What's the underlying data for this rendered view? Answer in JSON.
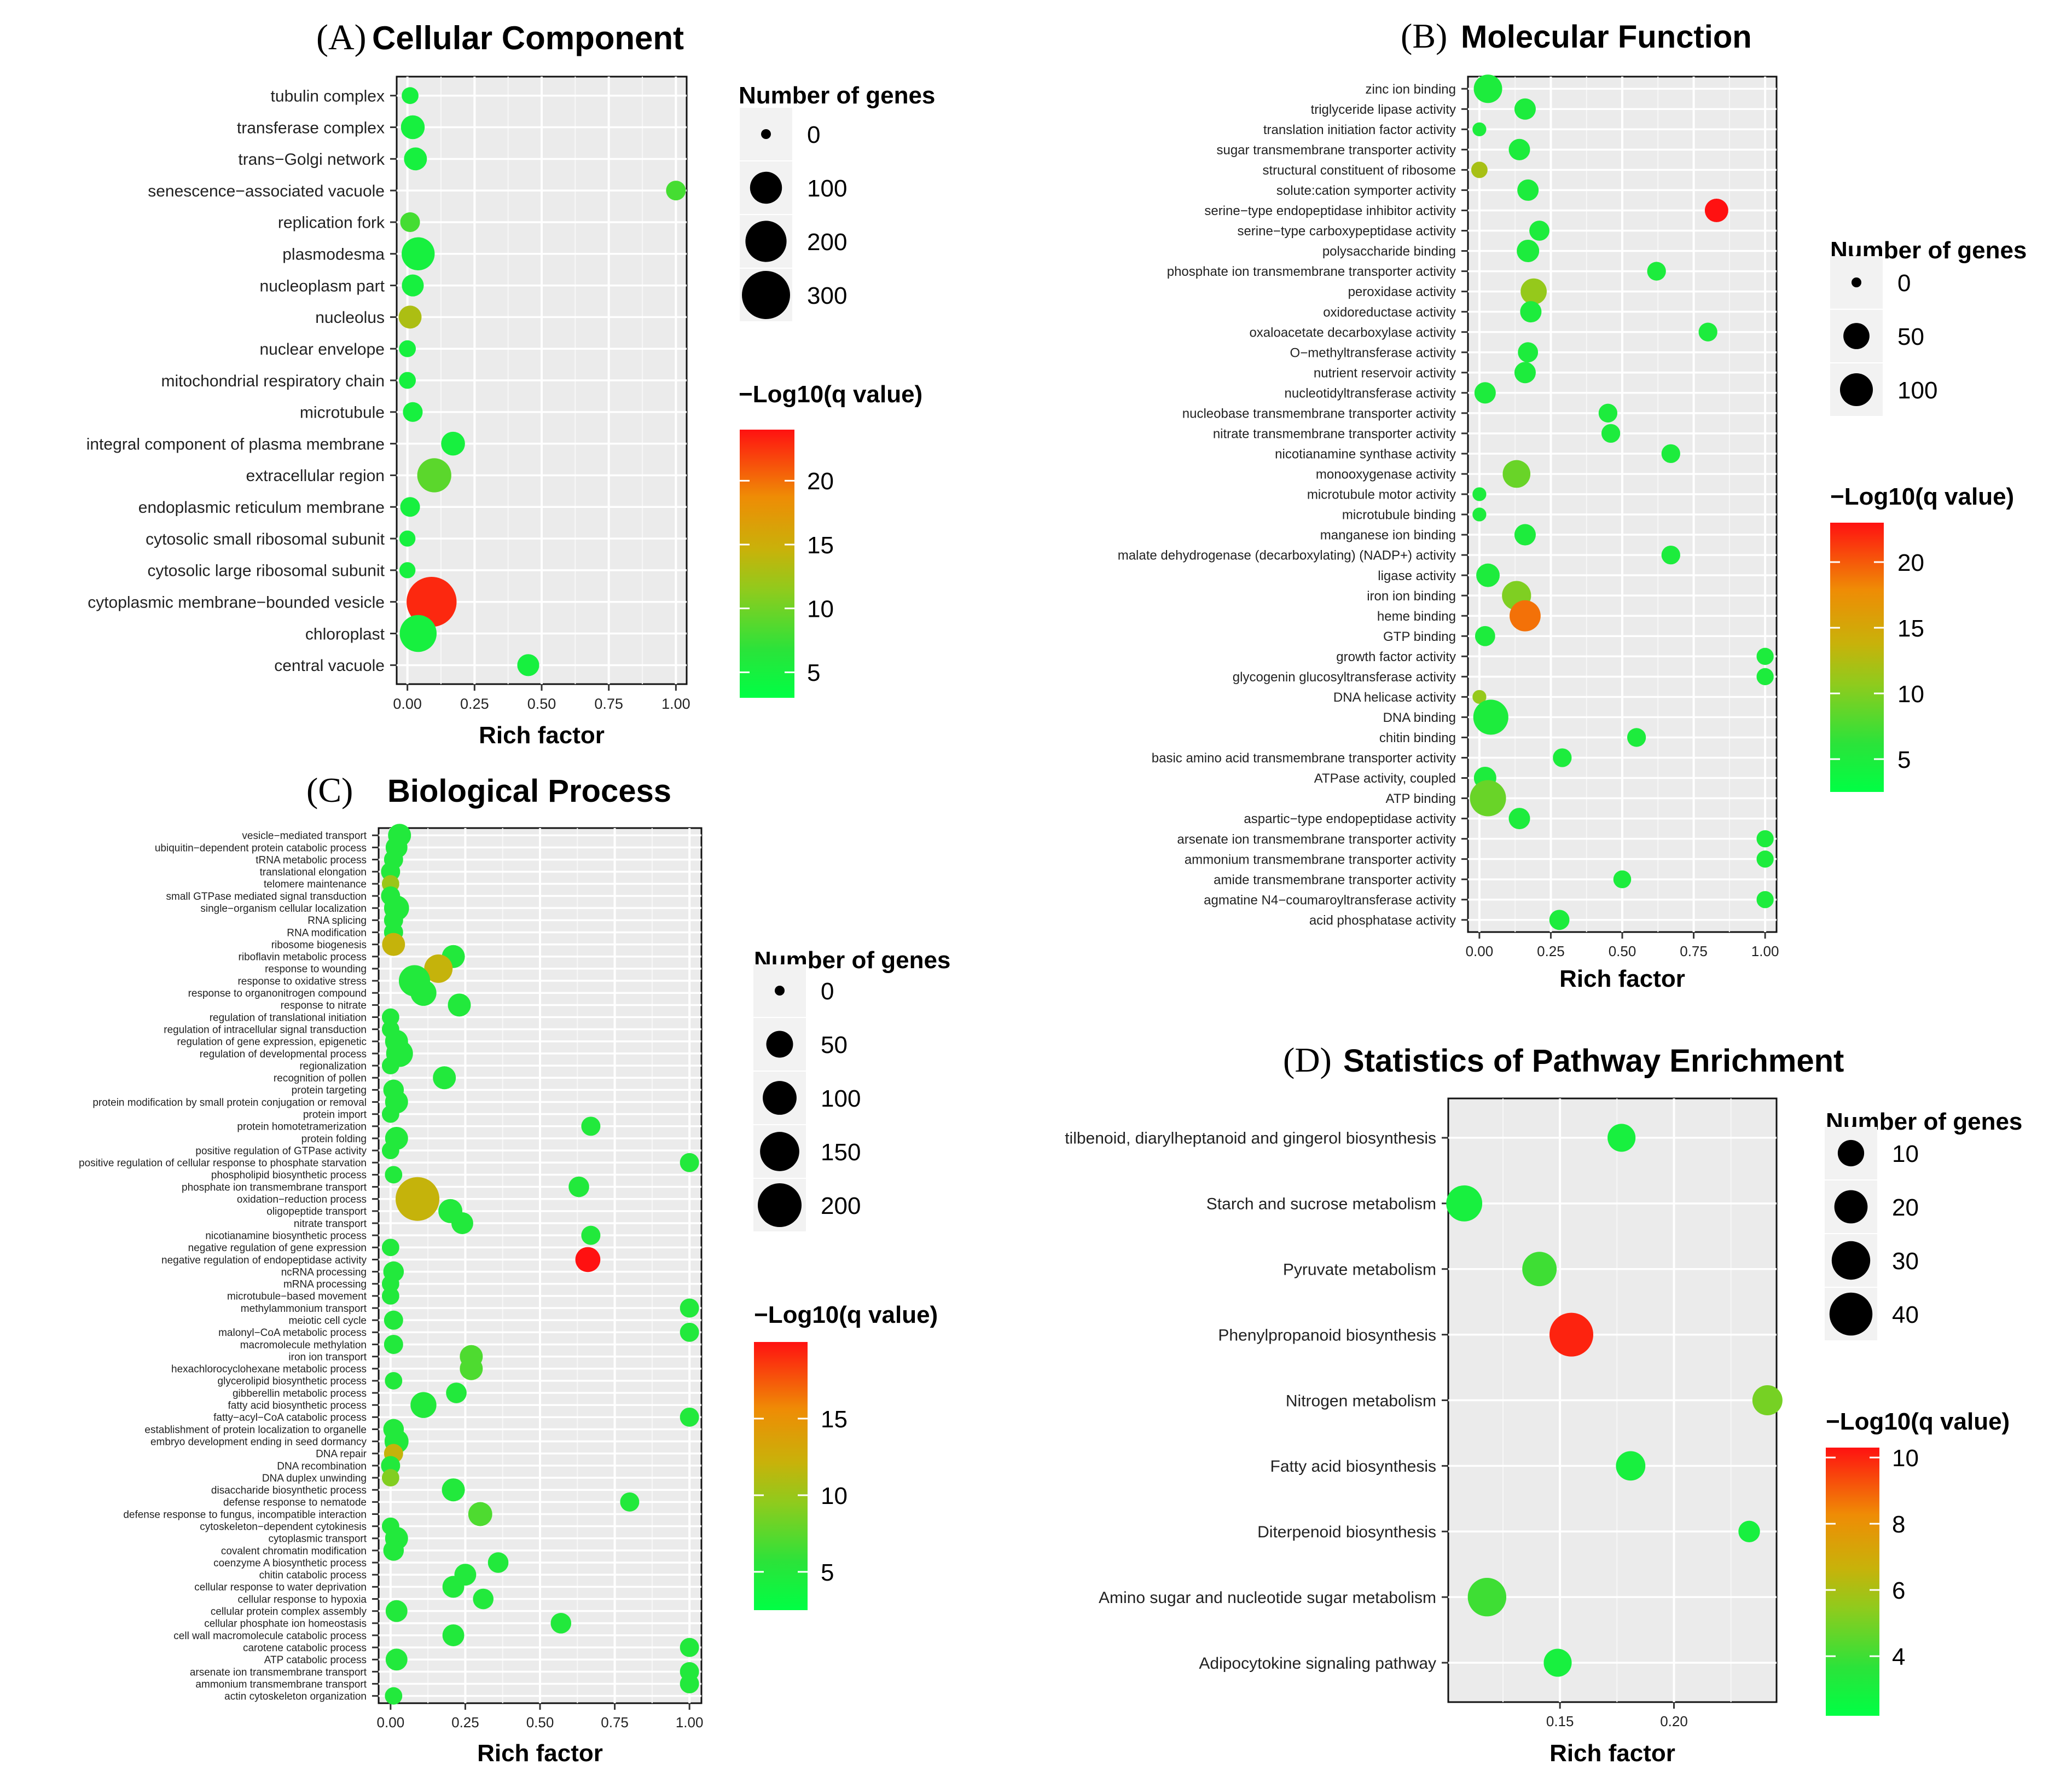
{
  "chart_data": [
    {
      "type": "scatter",
      "panel": "(A)",
      "title": "Cellular Component",
      "xlabel": "Rich factor",
      "xticks": [
        "0.00",
        "0.25",
        "0.50",
        "0.75",
        "1.00"
      ],
      "xlim": [
        -0.04,
        1.04
      ],
      "categories": [
        "tubulin complex",
        "transferase complex",
        "trans−Golgi network",
        "senescence−associated vacuole",
        "replication fork",
        "plasmodesma",
        "nucleoplasm part",
        "nucleolus",
        "nuclear envelope",
        "mitochondrial respiratory chain",
        "microtubule",
        "integral component of plasma membrane",
        "extracellular region",
        "endoplasmic reticulum membrane",
        "cytosolic small ribosomal subunit",
        "cytosolic large ribosomal subunit",
        "cytoplasmic membrane−bounded vesicle",
        "chloroplast",
        "central vacuole"
      ],
      "x": [
        0.01,
        0.02,
        0.03,
        1.0,
        0.01,
        0.04,
        0.02,
        0.01,
        0.0,
        0.0,
        0.02,
        0.17,
        0.1,
        0.01,
        0.0,
        0.0,
        0.09,
        0.04,
        0.45
      ],
      "genes": [
        10,
        40,
        35,
        20,
        20,
        110,
        30,
        35,
        10,
        10,
        20,
        40,
        120,
        20,
        8,
        8,
        330,
        150,
        30
      ],
      "q": [
        5,
        5,
        5,
        8,
        8,
        5,
        5,
        13,
        5,
        5,
        5,
        5,
        9,
        5,
        5,
        5,
        23,
        5,
        5
      ],
      "legend_size": {
        "title": "Number of genes",
        "values": [
          0,
          100,
          200,
          300
        ],
        "labels": [
          "0",
          "100",
          "200",
          "300"
        ]
      },
      "legend_color": {
        "title": "−Log10(q value)",
        "range": [
          3,
          24
        ],
        "labels": [
          "20",
          "15",
          "10",
          "5"
        ],
        "values": [
          20,
          15,
          10,
          5
        ]
      }
    },
    {
      "type": "scatter",
      "panel": "(B)",
      "title": "Molecular Function",
      "xlabel": "Rich factor",
      "xticks": [
        "0.00",
        "0.25",
        "0.50",
        "0.75",
        "1.00"
      ],
      "xlim": [
        -0.04,
        1.04
      ],
      "categories": [
        "zinc ion binding",
        "triglyceride lipase activity",
        "translation initiation factor activity",
        "sugar transmembrane transporter activity",
        "structural constituent of ribosome",
        "solute:cation symporter activity",
        "serine−type endopeptidase inhibitor activity",
        "serine−type carboxypeptidase activity",
        "polysaccharide binding",
        "phosphate ion transmembrane transporter activity",
        "peroxidase activity",
        "oxidoreductase activity",
        "oxaloacetate decarboxylase activity",
        "O−methyltransferase activity",
        "nutrient reservoir activity",
        "nucleotidyltransferase activity",
        "nucleobase transmembrane transporter activity",
        "nitrate transmembrane transporter activity",
        "nicotianamine synthase activity",
        "monooxygenase activity",
        "microtubule motor activity",
        "microtubule binding",
        "manganese ion binding",
        "malate dehydrogenase (decarboxylating) (NADP+) activity",
        "ligase activity",
        "iron ion binding",
        "heme binding",
        "GTP binding",
        "growth factor activity",
        "glycogenin glucosyltransferase activity",
        "DNA helicase activity",
        "DNA binding",
        "chitin binding",
        "basic amino acid transmembrane transporter activity",
        "ATPase activity, coupled",
        "ATP binding",
        "aspartic−type endopeptidase activity",
        "arsenate ion transmembrane transporter activity",
        "ammonium transmembrane transporter activity",
        "amide transmembrane transporter activity",
        "agmatine N4−coumaroyltransferase activity",
        "acid phosphatase activity"
      ],
      "x": [
        0.03,
        0.16,
        0.0,
        0.14,
        0.0,
        0.17,
        0.83,
        0.21,
        0.17,
        0.62,
        0.19,
        0.18,
        0.8,
        0.17,
        0.16,
        0.02,
        0.45,
        0.46,
        0.67,
        0.13,
        0.0,
        0.0,
        0.16,
        0.67,
        0.03,
        0.13,
        0.16,
        0.02,
        1.0,
        1.0,
        0.0,
        0.04,
        0.55,
        0.29,
        0.02,
        0.03,
        0.14,
        1.0,
        1.0,
        0.5,
        1.0,
        0.28
      ],
      "genes": [
        65,
        25,
        3,
        25,
        8,
        25,
        35,
        20,
        30,
        15,
        50,
        25,
        15,
        20,
        25,
        25,
        15,
        15,
        15,
        60,
        3,
        3,
        25,
        15,
        35,
        70,
        85,
        20,
        10,
        10,
        3,
        120,
        15,
        15,
        30,
        130,
        25,
        10,
        10,
        12,
        10,
        20
      ],
      "q": [
        5,
        5,
        5,
        5,
        12,
        5,
        23,
        5,
        5,
        5,
        11,
        5,
        5,
        5,
        5,
        5,
        5,
        5,
        5,
        9,
        5,
        5,
        5,
        5,
        5,
        10,
        19,
        5,
        5,
        5,
        11,
        5,
        5,
        5,
        5,
        9,
        5,
        5,
        5,
        5,
        5,
        5
      ],
      "legend_size": {
        "title": "Number of genes",
        "values": [
          0,
          50,
          100
        ],
        "labels": [
          "0",
          "50",
          "100"
        ]
      },
      "legend_color": {
        "title": "−Log10(q value)",
        "range": [
          2.5,
          23
        ],
        "labels": [
          "20",
          "15",
          "10",
          "5"
        ],
        "values": [
          20,
          15,
          10,
          5
        ]
      }
    },
    {
      "type": "scatter",
      "panel": "(C)",
      "title": "Biological Process",
      "xlabel": "Rich factor",
      "xticks": [
        "0.00",
        "0.25",
        "0.50",
        "0.75",
        "1.00"
      ],
      "xlim": [
        -0.04,
        1.04
      ],
      "categories": [
        "vesicle−mediated transport",
        "ubiquitin−dependent protein catabolic process",
        "tRNA metabolic process",
        "translational elongation",
        "telomere maintenance",
        "small GTPase mediated signal transduction",
        "single−organism cellular localization",
        "RNA splicing",
        "RNA modification",
        "ribosome biogenesis",
        "riboflavin metabolic process",
        "response to wounding",
        "response to oxidative stress",
        "response to organonitrogen compound",
        "response to nitrate",
        "regulation of translational initiation",
        "regulation of intracellular signal transduction",
        "regulation of gene expression, epigenetic",
        "regulation of developmental process",
        "regionalization",
        "recognition of pollen",
        "protein targeting",
        "protein modification by small protein conjugation or removal",
        "protein import",
        "protein homotetramerization",
        "protein folding",
        "positive regulation of GTPase activity",
        "positive regulation of cellular response to phosphate starvation",
        "phospholipid biosynthetic process",
        "phosphate ion transmembrane transport",
        "oxidation−reduction process",
        "oligopeptide transport",
        "nitrate transport",
        "nicotianamine biosynthetic process",
        "negative regulation of gene expression",
        "negative regulation of endopeptidase activity",
        "ncRNA processing",
        "mRNA processing",
        "microtubule−based movement",
        "methylammonium transport",
        "meiotic cell cycle",
        "malonyl−CoA metabolic process",
        "macromolecule methylation",
        "iron ion transport",
        "hexachlorocyclohexane metabolic process",
        "glycerolipid biosynthetic process",
        "gibberellin metabolic process",
        "fatty acid biosynthetic process",
        "fatty−acyl−CoA catabolic process",
        "establishment of protein localization to organelle",
        "embryo development ending in seed dormancy",
        "DNA repair",
        "DNA recombination",
        "DNA duplex unwinding",
        "disaccharide biosynthetic process",
        "defense response to nematode",
        "defense response to fungus, incompatible interaction",
        "cytoskeleton−dependent cytokinesis",
        "cytoplasmic transport",
        "covalent chromatin modification",
        "coenzyme A biosynthetic process",
        "chitin catabolic process",
        "cellular response to water deprivation",
        "cellular response to hypoxia",
        "cellular protein complex assembly",
        "cellular phosphate ion homeostasis",
        "cell wall macromolecule catabolic process",
        "carotene catabolic process",
        "ATP catabolic process",
        "arsenate ion transmembrane transport",
        "ammonium transmembrane transport",
        "actin cytoskeleton organization"
      ],
      "x": [
        0.03,
        0.02,
        0.01,
        0.0,
        0.0,
        0.0,
        0.02,
        0.01,
        0.01,
        0.01,
        0.21,
        0.16,
        0.08,
        0.11,
        0.23,
        0.0,
        0.0,
        0.02,
        0.03,
        0.0,
        0.18,
        0.01,
        0.02,
        0.0,
        0.67,
        0.02,
        0.0,
        1.0,
        0.01,
        0.63,
        0.09,
        0.2,
        0.24,
        0.67,
        0.0,
        0.66,
        0.01,
        0.0,
        0.0,
        1.0,
        0.01,
        1.0,
        0.01,
        0.27,
        0.27,
        0.01,
        0.22,
        0.11,
        1.0,
        0.01,
        0.02,
        0.01,
        0.0,
        0.0,
        0.21,
        0.8,
        0.3,
        0.0,
        0.02,
        0.01,
        0.36,
        0.25,
        0.21,
        0.31,
        0.02,
        0.57,
        0.21,
        1.0,
        0.02,
        1.0,
        1.0,
        0.01
      ],
      "genes": [
        30,
        25,
        15,
        15,
        10,
        15,
        40,
        15,
        15,
        30,
        30,
        60,
        80,
        45,
        30,
        10,
        10,
        30,
        50,
        10,
        30,
        20,
        30,
        10,
        15,
        30,
        10,
        15,
        10,
        20,
        200,
        35,
        25,
        15,
        10,
        40,
        20,
        10,
        10,
        15,
        15,
        15,
        15,
        30,
        30,
        10,
        20,
        45,
        15,
        20,
        35,
        15,
        15,
        10,
        30,
        15,
        35,
        10,
        30,
        20,
        20,
        25,
        25,
        20,
        25,
        20,
        25,
        15,
        25,
        15,
        15,
        10
      ],
      "q": [
        5,
        5,
        5,
        5,
        10,
        5,
        5,
        5,
        5,
        12,
        5,
        12,
        5,
        5,
        5,
        5,
        5,
        5,
        5,
        5,
        5,
        5,
        5,
        5,
        5,
        5,
        5,
        5,
        5,
        5,
        12,
        5,
        5,
        5,
        5,
        20,
        5,
        5,
        5,
        5,
        5,
        5,
        5,
        7,
        7,
        5,
        5,
        5,
        5,
        5,
        5,
        12,
        5,
        9,
        5,
        5,
        7,
        5,
        5,
        5,
        5,
        5,
        5,
        5,
        5,
        5,
        5,
        5,
        5,
        5,
        5,
        5
      ],
      "legend_size": {
        "title": "Number of genes",
        "values": [
          0,
          50,
          100,
          150,
          200
        ],
        "labels": [
          "0",
          "50",
          "100",
          "150",
          "200"
        ]
      },
      "legend_color": {
        "title": "−Log10(q value)",
        "range": [
          2.5,
          20
        ],
        "labels": [
          "15",
          "10",
          "5"
        ],
        "values": [
          15,
          10,
          5
        ]
      }
    },
    {
      "type": "scatter",
      "panel": "(D)",
      "title": "Statistics of Pathway Enrichment",
      "xlabel": "Rich factor",
      "xticks": [
        "0.15",
        "0.20"
      ],
      "xtick_values": [
        0.15,
        0.2
      ],
      "xlim": [
        0.101,
        0.245
      ],
      "categories": [
        "tilbenoid, diarylheptanoid and gingerol biosynthesis",
        "Starch and sucrose metabolism",
        "Pyruvate metabolism",
        "Phenylpropanoid biosynthesis",
        "Nitrogen metabolism",
        "Fatty acid biosynthesis",
        "Diterpenoid biosynthesis",
        "Amino sugar and nucleotide sugar metabolism",
        "Adipocytokine signaling pathway"
      ],
      "x": [
        0.177,
        0.108,
        0.141,
        0.155,
        0.241,
        0.181,
        0.233,
        0.118,
        0.149
      ],
      "genes": [
        12,
        25,
        22,
        42,
        15,
        14,
        5,
        30,
        12
      ],
      "q": [
        3,
        3,
        4,
        10,
        5,
        3,
        3,
        4,
        3
      ],
      "legend_size": {
        "title": "Number of genes",
        "values": [
          10,
          20,
          30,
          40
        ],
        "labels": [
          "10",
          "20",
          "30",
          "40"
        ]
      },
      "legend_color": {
        "title": "−Log10(q value)",
        "range": [
          2.2,
          10.3
        ],
        "labels": [
          "10",
          "8",
          "6",
          "4"
        ],
        "values": [
          10,
          8,
          6,
          4
        ]
      }
    }
  ]
}
